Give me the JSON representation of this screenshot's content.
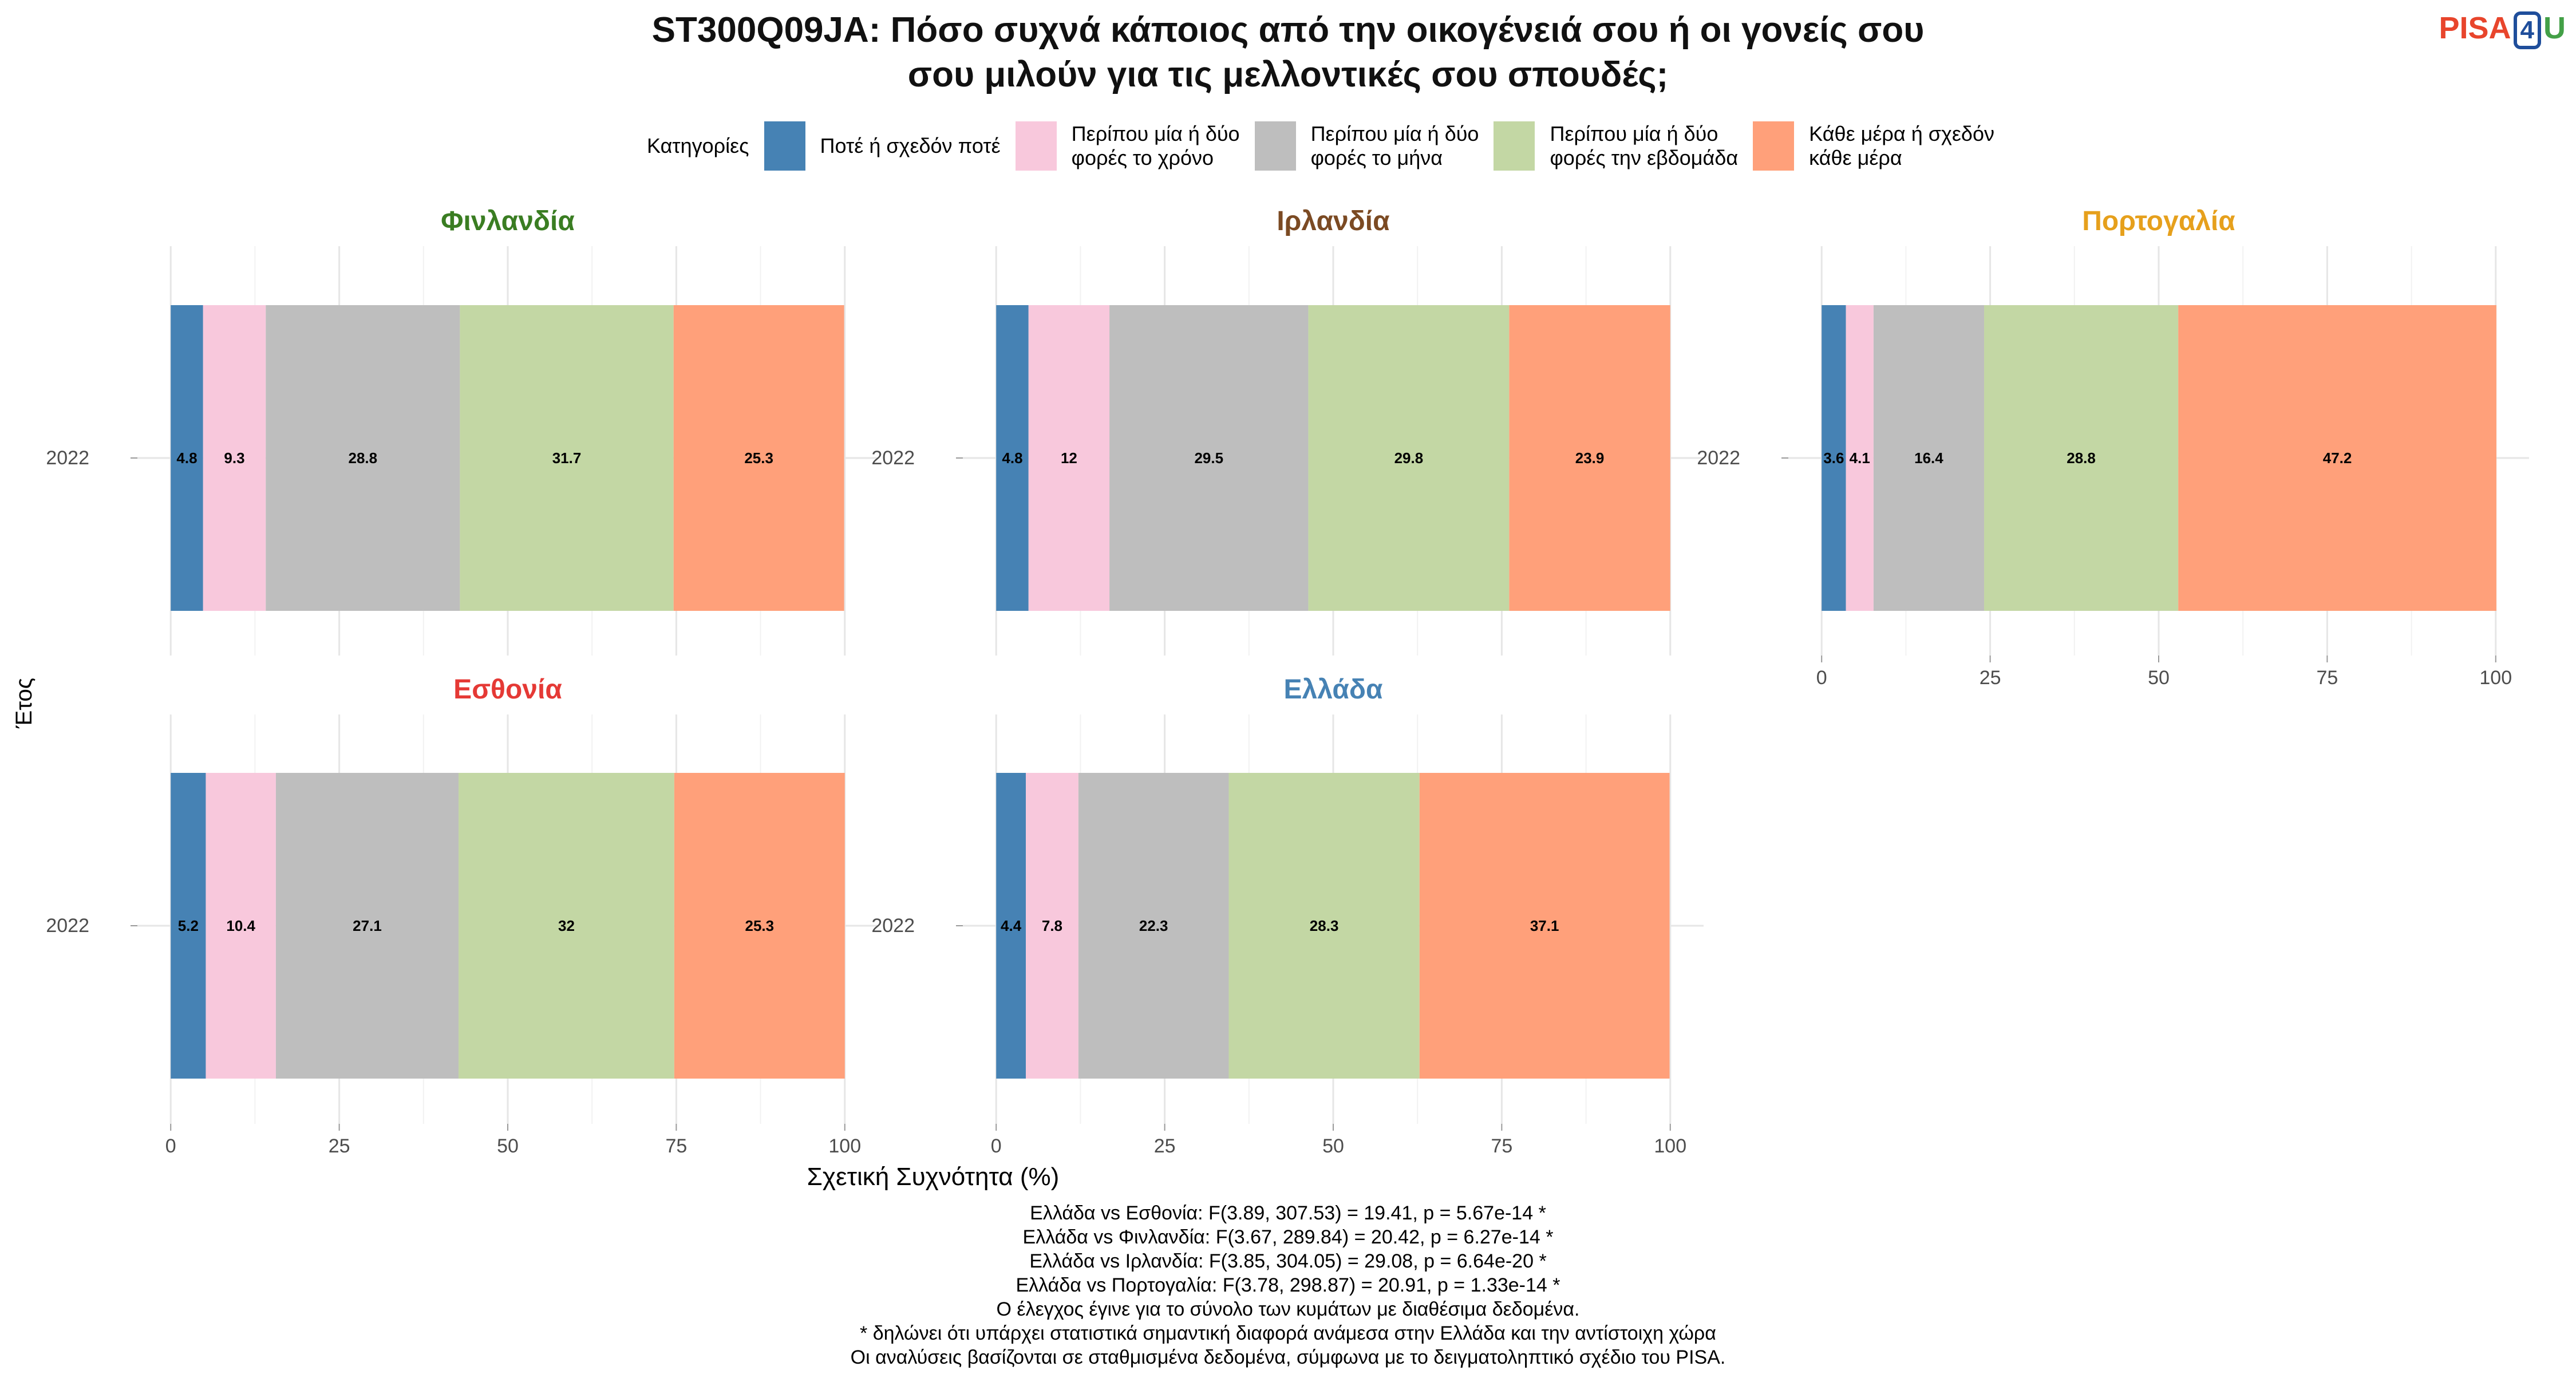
{
  "title_lines": [
    "ST300Q09JA: Πόσο συχνά κάποιος από την οικογένειά σου ή οι γονείς σου",
    "σου μιλούν για τις μελλοντικές σου σπουδές;"
  ],
  "logo": {
    "part1": "PISA",
    "part2": "4",
    "part3": "U"
  },
  "legend": {
    "title": "Κατηγορίες",
    "items": [
      {
        "label": "Ποτέ ή σχεδόν ποτέ",
        "color": "#4682b4"
      },
      {
        "label": "Περίπου μία ή δύο\nφορές το χρόνο",
        "color": "#f8c8dc"
      },
      {
        "label": "Περίπου μία ή δύο\nφορές το μήνα",
        "color": "#bebebe"
      },
      {
        "label": "Περίπου μία ή δύο\nφορές την εβδομάδα",
        "color": "#c3d7a4"
      },
      {
        "label": "Κάθε μέρα ή σχεδόν\nκάθε μέρα",
        "color": "#ffa07a"
      }
    ]
  },
  "chart_data": {
    "type": "bar",
    "orientation": "horizontal",
    "stacked": true,
    "xlabel": "Σχετική Συχνότητα (%)",
    "ylabel": "Έτος",
    "xlim": [
      0,
      100
    ],
    "xticks": [
      0,
      25,
      50,
      75,
      100
    ],
    "grid": true,
    "legend_position": "top",
    "categories": [
      "Ποτέ ή σχεδόν ποτέ",
      "Περίπου μία ή δύο φορές το χρόνο",
      "Περίπου μία ή δύο φορές το μήνα",
      "Περίπου μία ή δύο φορές την εβδομάδα",
      "Κάθε μέρα ή σχεδόν κάθε μέρα"
    ],
    "panels": [
      {
        "name": "Φινλανδία",
        "color": "#3a7d22",
        "year": "2022",
        "values": [
          4.8,
          9.3,
          28.8,
          31.7,
          25.3
        ]
      },
      {
        "name": "Ιρλανδία",
        "color": "#7b4a23",
        "year": "2022",
        "values": [
          4.8,
          12,
          29.5,
          29.8,
          23.9
        ]
      },
      {
        "name": "Πορτογαλία",
        "color": "#e6a01c",
        "year": "2022",
        "values": [
          3.6,
          4.1,
          16.4,
          28.8,
          47.2
        ]
      },
      {
        "name": "Εσθονία",
        "color": "#e53935",
        "year": "2022",
        "values": [
          5.2,
          10.4,
          27.1,
          32,
          25.3
        ]
      },
      {
        "name": "Ελλάδα",
        "color": "#4682b4",
        "year": "2022",
        "values": [
          4.4,
          7.8,
          22.3,
          28.3,
          37.1
        ]
      }
    ]
  },
  "notes": [
    "Ελλάδα vs Εσθονία: F(3.89, 307.53) = 19.41, p = 5.67e-14 *",
    "Ελλάδα vs Φινλανδία: F(3.67, 289.84) = 20.42, p = 6.27e-14 *",
    "Ελλάδα vs Ιρλανδία: F(3.85, 304.05) = 29.08, p = 6.64e-20 *",
    "Ελλάδα vs Πορτογαλία: F(3.78, 298.87) = 20.91, p = 1.33e-14 *",
    "Ο έλεγχος έγινε για το σύνολο των κυμάτων με διαθέσιμα δεδομένα.",
    "* δηλώνει ότι υπάρχει στατιστικά σημαντική διαφορά ανάμεσα στην Ελλάδα και την αντίστοιχη χώρα",
    "Οι αναλύσεις βασίζονται σε σταθμισμένα δεδομένα, σύμφωνα με το δειγματοληπτικό σχέδιο του PISA."
  ]
}
